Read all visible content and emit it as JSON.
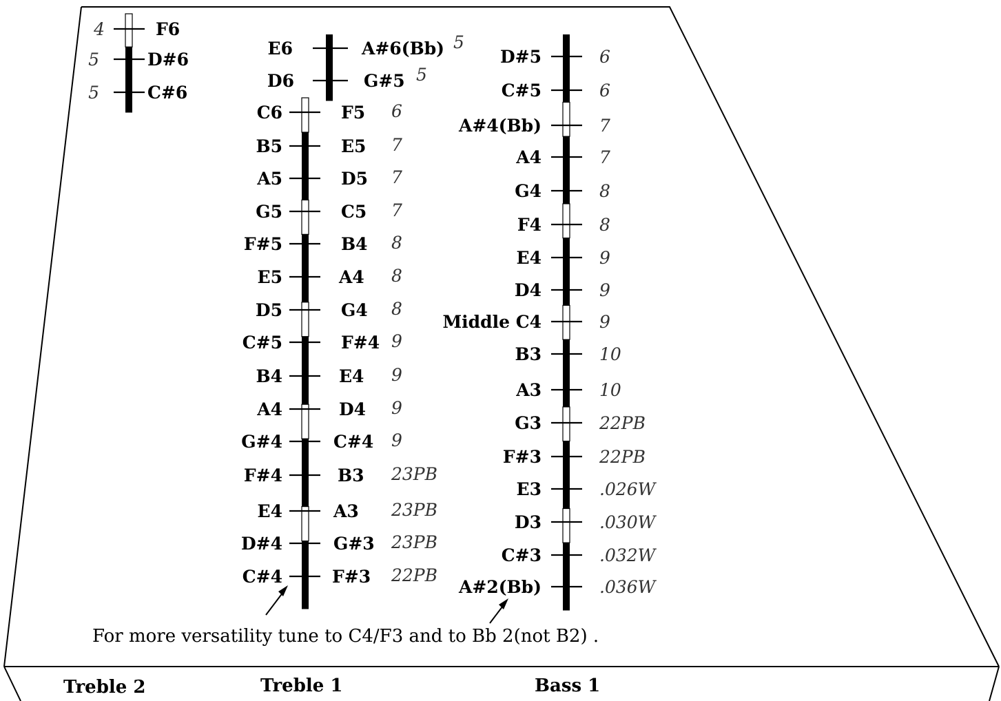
{
  "section_labels": [
    "Treble 2",
    "Treble 1",
    "Bass 1"
  ],
  "caption": "For more versatility tune to C4/F3 and to Bb 2(not B2) .",
  "bridges": [
    {
      "id": "treble2",
      "segments": [
        "white",
        "black",
        "black"
      ],
      "courses": [
        {
          "left_label": "4",
          "left_style": "gauge",
          "right_label": "F6",
          "right_style": "note"
        },
        {
          "left_label": "5",
          "left_style": "gauge",
          "right_label": "D#6",
          "right_style": "note"
        },
        {
          "left_label": "5",
          "left_style": "gauge",
          "right_label": "C#6",
          "right_style": "note"
        }
      ]
    },
    {
      "id": "treble1-top",
      "segments": [
        "black",
        "black"
      ],
      "courses": [
        {
          "left_label": "E6",
          "left_style": "note",
          "right_label": "A#6(Bb)",
          "right_style": "note",
          "extra_label": "5"
        },
        {
          "left_label": "D6",
          "left_style": "note",
          "right_label": "G#5",
          "right_style": "note",
          "extra_label": "5"
        }
      ]
    },
    {
      "id": "treble1",
      "segments": [
        "white",
        "black",
        "black",
        "white",
        "black",
        "black",
        "white",
        "black",
        "black",
        "white",
        "black",
        "black",
        "white",
        "black",
        "black"
      ],
      "courses": [
        {
          "left_label": "C6",
          "right_label": "F5",
          "extra_label": "6"
        },
        {
          "left_label": "B5",
          "right_label": "E5",
          "extra_label": "7"
        },
        {
          "left_label": "A5",
          "right_label": "D5",
          "extra_label": "7"
        },
        {
          "left_label": "G5",
          "right_label": "C5",
          "extra_label": "7"
        },
        {
          "left_label": "F#5",
          "right_label": "B4",
          "extra_label": "8"
        },
        {
          "left_label": "E5",
          "right_label": "A4",
          "extra_label": "8"
        },
        {
          "left_label": "D5",
          "right_label": "G4",
          "extra_label": "8"
        },
        {
          "left_label": "C#5",
          "right_label": "F#4",
          "extra_label": "9"
        },
        {
          "left_label": "B4",
          "right_label": "E4",
          "extra_label": "9"
        },
        {
          "left_label": "A4",
          "right_label": "D4",
          "extra_label": "9"
        },
        {
          "left_label": "G#4",
          "right_label": "C#4",
          "extra_label": "9"
        },
        {
          "left_label": "F#4",
          "right_label": "B3",
          "extra_label": "23PB"
        },
        {
          "left_label": "E4",
          "right_label": "A3",
          "extra_label": "23PB"
        },
        {
          "left_label": "D#4",
          "right_label": "G#3",
          "extra_label": "23PB"
        },
        {
          "left_label": "C#4",
          "right_label": "F#3",
          "extra_label": "22PB"
        }
      ]
    },
    {
      "id": "bass1",
      "segments": [
        "black",
        "black",
        "white",
        "black",
        "black",
        "white",
        "black",
        "black",
        "white",
        "black",
        "black",
        "white",
        "black",
        "black",
        "white",
        "black",
        "black"
      ],
      "courses": [
        {
          "left_label": "D#5",
          "right_label": "6"
        },
        {
          "left_label": "C#5",
          "right_label": "6"
        },
        {
          "left_label": "A#4(Bb)",
          "right_label": "7"
        },
        {
          "left_label": "A4",
          "right_label": "7"
        },
        {
          "left_label": "G4",
          "right_label": "8"
        },
        {
          "left_label": "F4",
          "right_label": "8"
        },
        {
          "left_label": "E4",
          "right_label": "9"
        },
        {
          "left_label": "D4",
          "right_label": "9"
        },
        {
          "left_label": "Middle C4",
          "right_label": "9"
        },
        {
          "left_label": "B3",
          "right_label": "10"
        },
        {
          "left_label": "A3",
          "right_label": "10"
        },
        {
          "left_label": "G3",
          "right_label": "22PB"
        },
        {
          "left_label": "F#3",
          "right_label": "22PB"
        },
        {
          "left_label": "E3",
          "right_label": ".026W"
        },
        {
          "left_label": "D3",
          "right_label": ".030W"
        },
        {
          "left_label": "C#3",
          "right_label": ".032W"
        },
        {
          "left_label": "A#2(Bb)",
          "right_label": ".036W"
        }
      ]
    }
  ]
}
